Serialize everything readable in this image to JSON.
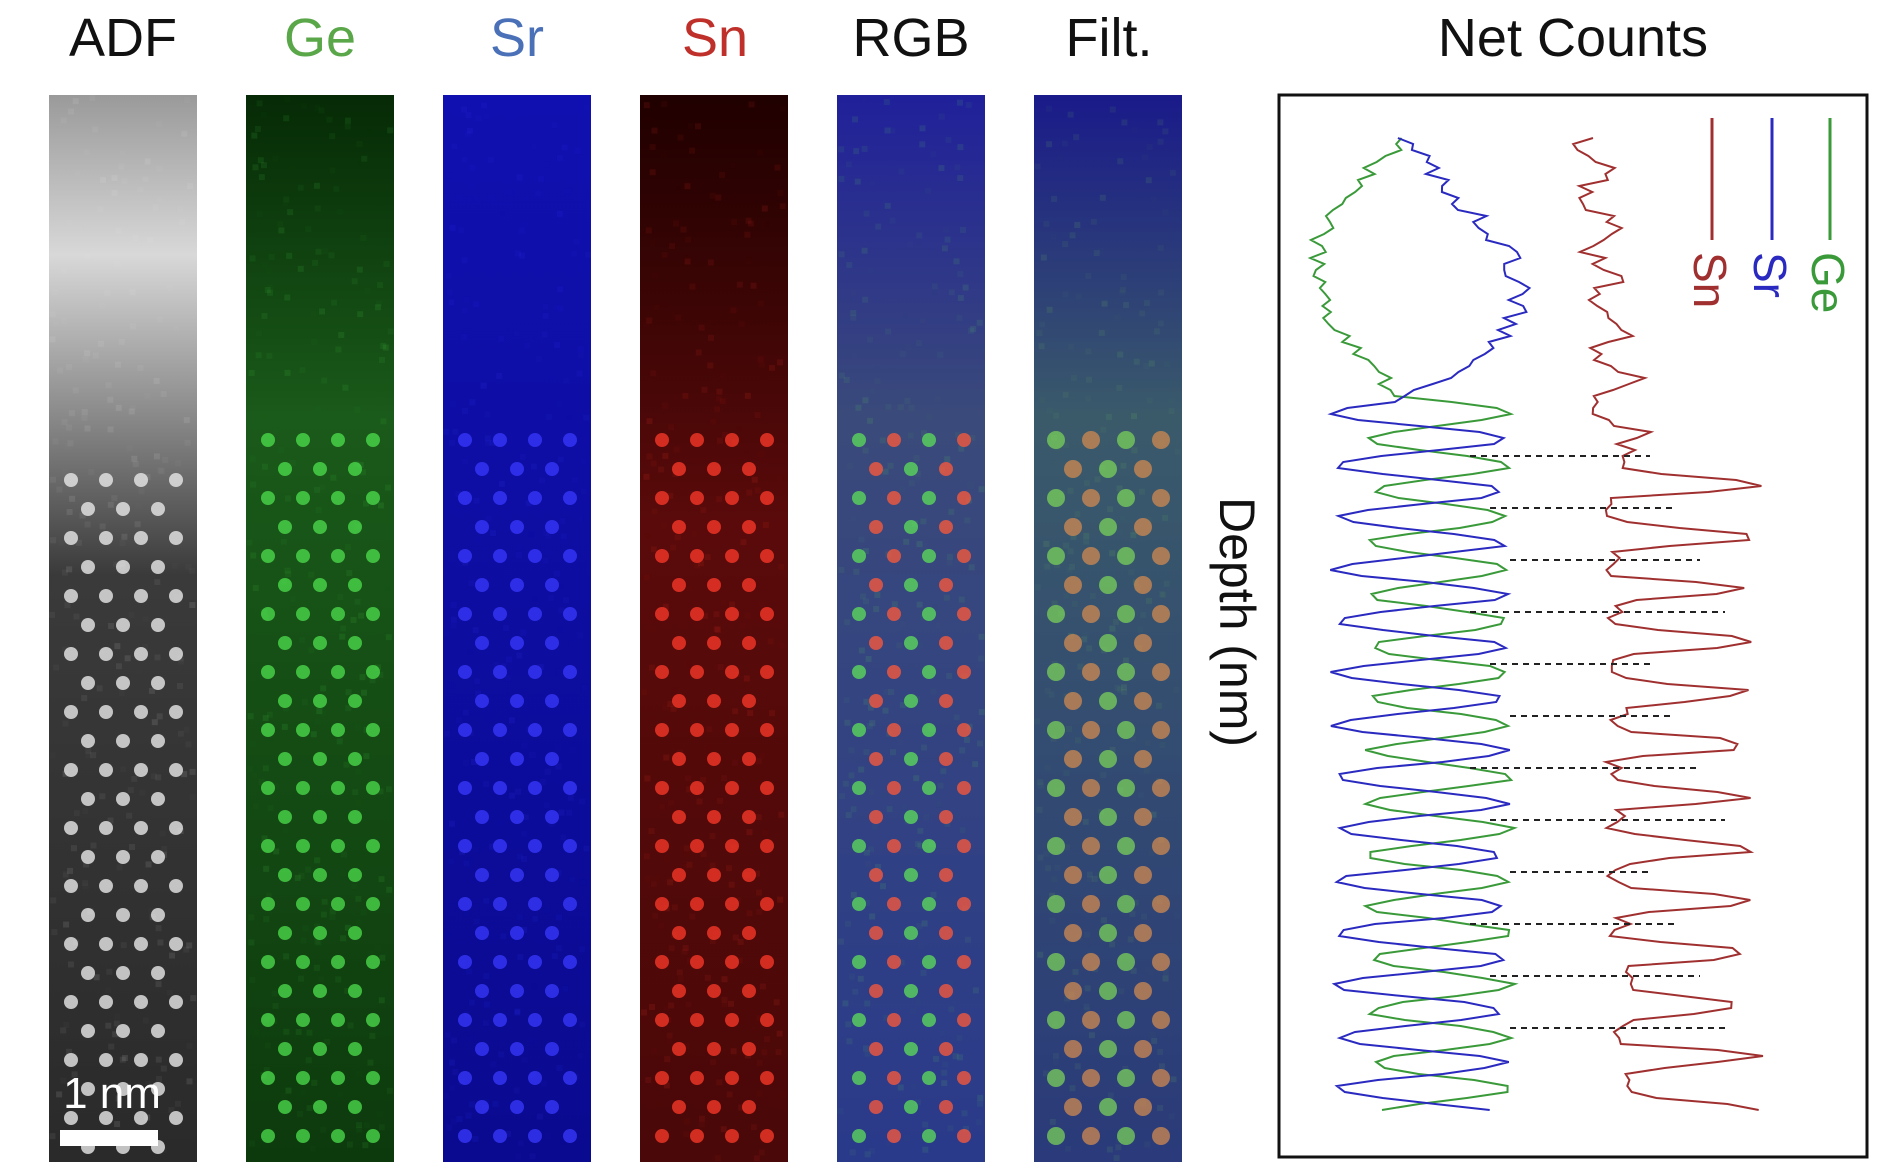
{
  "panels": {
    "titles": [
      "ADF",
      "Ge",
      "Sr",
      "Sn",
      "RGB",
      "Filt."
    ],
    "scale_bar": "1 nm"
  },
  "profile": {
    "title": "Net Counts",
    "axis_label": "Depth (nm)",
    "legend": [
      "Ge",
      "Sr",
      "Sn"
    ]
  }
}
